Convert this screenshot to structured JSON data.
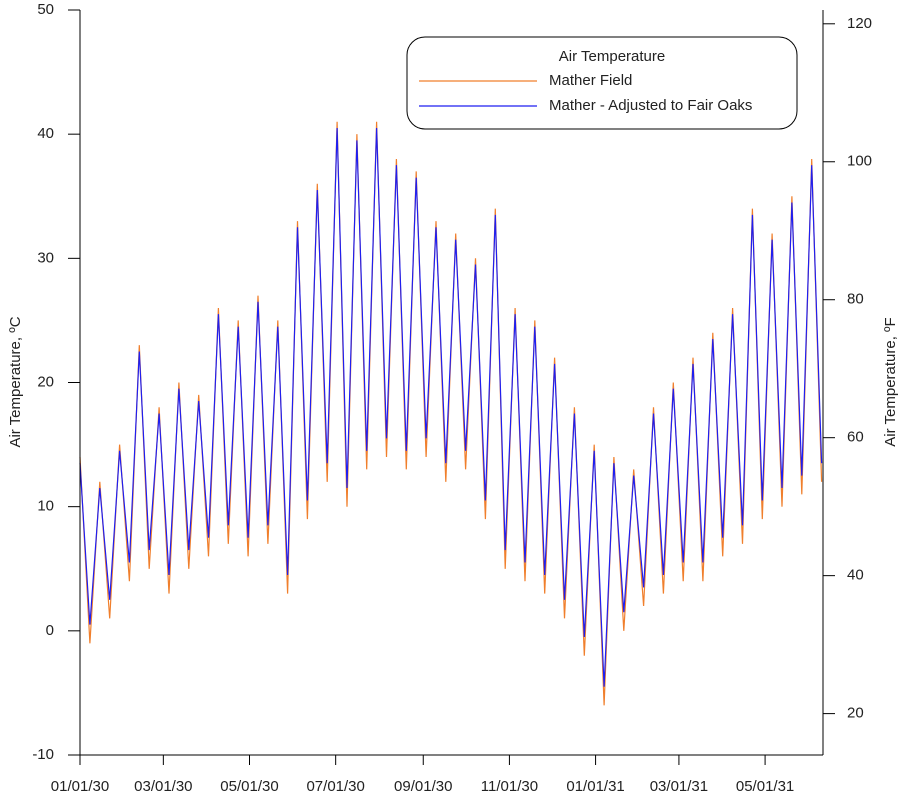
{
  "chart_data": {
    "type": "line",
    "ylabel": "Air Temperature, ºC",
    "y2label": "Air Temperature, ºF",
    "legend_title": "Air Temperature",
    "legend": "top right",
    "x": [
      "01/01/30",
      "01/08/30",
      "01/15/30",
      "01/22/30",
      "01/29/30",
      "02/05/30",
      "02/12/30",
      "02/19/30",
      "02/26/30",
      "03/05/30",
      "03/12/30",
      "03/19/30",
      "03/26/30",
      "04/02/30",
      "04/09/30",
      "04/16/30",
      "04/23/30",
      "04/30/30",
      "05/07/30",
      "05/14/30",
      "05/21/30",
      "05/28/30",
      "06/04/30",
      "06/11/30",
      "06/18/30",
      "06/25/30",
      "07/02/30",
      "07/09/30",
      "07/16/30",
      "07/23/30",
      "07/30/30",
      "08/06/30",
      "08/13/30",
      "08/20/30",
      "08/27/30",
      "09/03/30",
      "09/10/30",
      "09/17/30",
      "09/24/30",
      "10/01/30",
      "10/08/30",
      "10/15/30",
      "10/22/30",
      "10/29/30",
      "11/05/30",
      "11/12/30",
      "11/19/30",
      "11/26/30",
      "12/03/30",
      "12/10/30",
      "12/17/30",
      "12/24/30",
      "12/31/30",
      "01/07/31",
      "01/14/31",
      "01/21/31",
      "01/28/31",
      "02/04/31",
      "02/11/31",
      "02/18/31",
      "02/25/31",
      "03/04/31",
      "03/11/31",
      "03/18/31",
      "03/25/31",
      "04/01/31",
      "04/08/31",
      "04/15/31",
      "04/22/31",
      "04/29/31",
      "05/06/31",
      "05/13/31",
      "05/20/31",
      "05/27/31",
      "06/03/31",
      "06/10/31"
    ],
    "series": [
      {
        "name": "Mather Field",
        "color": "#f07f2c",
        "values": [
          14,
          -1,
          12,
          1,
          15,
          4,
          23,
          5,
          18,
          3,
          20,
          5,
          19,
          6,
          26,
          7,
          25,
          6,
          27,
          7,
          25,
          3,
          33,
          9,
          36,
          12,
          41,
          10,
          40,
          13,
          41,
          14,
          38,
          13,
          37,
          14,
          33,
          12,
          32,
          13,
          30,
          9,
          34,
          5,
          26,
          4,
          25,
          3,
          22,
          1,
          18,
          -2,
          15,
          -6,
          14,
          0,
          13,
          2,
          18,
          3,
          20,
          4,
          22,
          4,
          24,
          6,
          26,
          7,
          34,
          9,
          32,
          10,
          35,
          11,
          38,
          12
        ]
      },
      {
        "name": "Mather - Adjusted to Fair Oaks",
        "color": "#1f1ff0",
        "values": [
          13.5,
          0.5,
          11.5,
          2.5,
          14.5,
          5.5,
          22.5,
          6.5,
          17.5,
          4.5,
          19.5,
          6.5,
          18.5,
          7.5,
          25.5,
          8.5,
          24.5,
          7.5,
          26.5,
          8.5,
          24.5,
          4.5,
          32.5,
          10.5,
          35.5,
          13.5,
          40.5,
          11.5,
          39.5,
          14.5,
          40.5,
          15.5,
          37.5,
          14.5,
          36.5,
          15.5,
          32.5,
          13.5,
          31.5,
          14.5,
          29.5,
          10.5,
          33.5,
          6.5,
          25.5,
          5.5,
          24.5,
          4.5,
          21.5,
          2.5,
          17.5,
          -0.5,
          14.5,
          -4.5,
          13.5,
          1.5,
          12.5,
          3.5,
          17.5,
          4.5,
          19.5,
          5.5,
          21.5,
          5.5,
          23.5,
          7.5,
          25.5,
          8.5,
          33.5,
          10.5,
          31.5,
          11.5,
          34.5,
          12.5,
          37.5,
          13.5
        ]
      }
    ],
    "xlim": [
      "01/01/30",
      "06/11/31"
    ],
    "xticks": [
      "01/01/30",
      "03/01/30",
      "05/01/30",
      "07/01/30",
      "09/01/30",
      "11/01/30",
      "01/01/31",
      "03/01/31",
      "05/01/31"
    ],
    "ylim": [
      -10,
      50
    ],
    "yticks": [
      -10,
      0,
      10,
      20,
      30,
      40,
      50
    ],
    "y2lim": [
      14,
      122
    ],
    "y2ticks": [
      20,
      40,
      60,
      80,
      100,
      120
    ]
  }
}
